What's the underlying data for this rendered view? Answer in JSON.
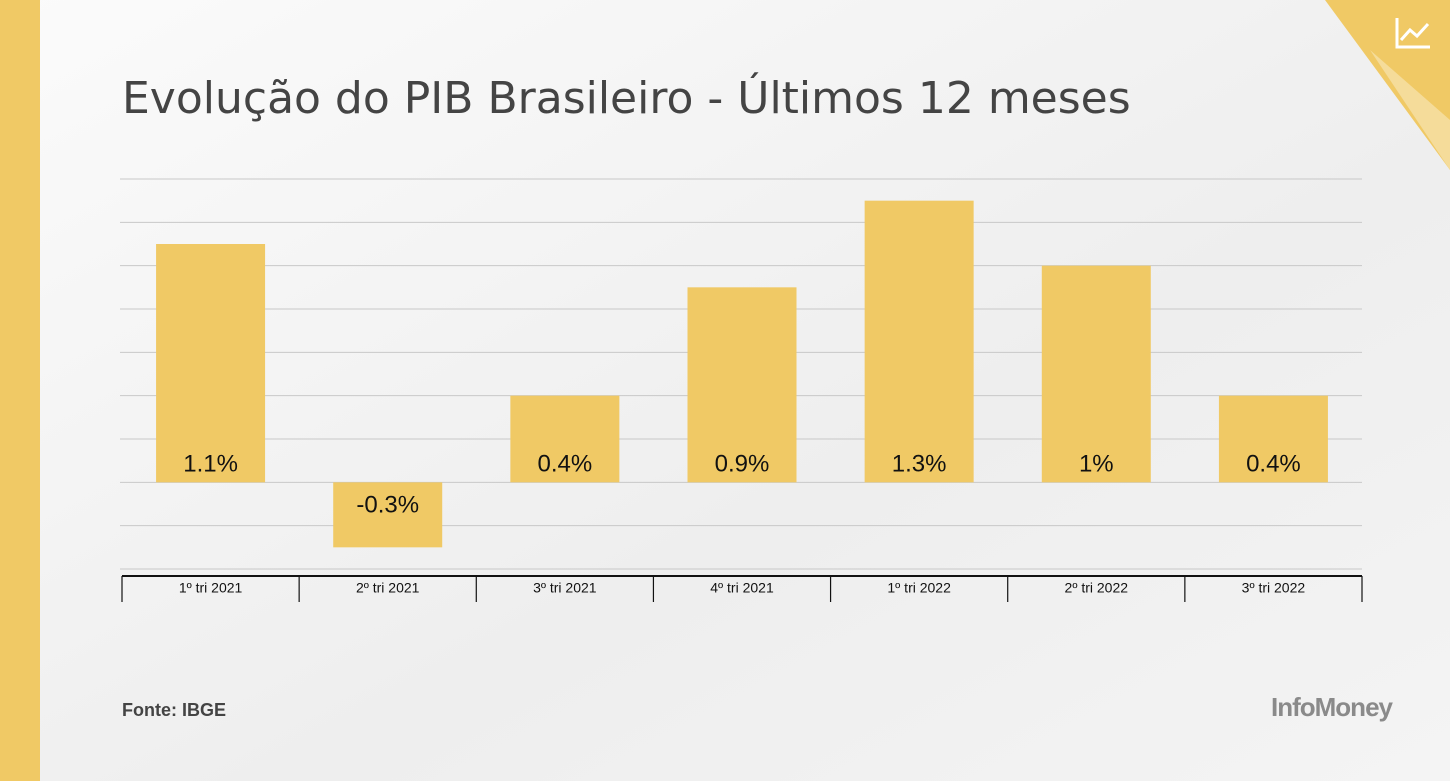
{
  "chart_data": {
    "type": "bar",
    "title": "Evolução do PIB Brasileiro - Últimos 12 meses",
    "categories": [
      "1º tri 2021",
      "2º tri 2021",
      "3º tri 2021",
      "4º tri 2021",
      "1º tri 2022",
      "2º tri 2022",
      "3º tri 2022"
    ],
    "values": [
      1.1,
      -0.3,
      0.4,
      0.9,
      1.3,
      1.0,
      0.4
    ],
    "value_labels": [
      "1.1%",
      "-0.3%",
      "0.4%",
      "0.9%",
      "1.3%",
      "1%",
      "0.4%"
    ],
    "color": "#f0c965",
    "ylim": [
      -0.4,
      1.4
    ],
    "yticks": [
      -0.4,
      -0.2,
      0,
      0.2,
      0.4,
      0.6,
      0.8,
      1,
      1.2,
      1.4
    ],
    "grid": true
  },
  "source": "Fonte: IBGE",
  "brand": "InfoMoney"
}
